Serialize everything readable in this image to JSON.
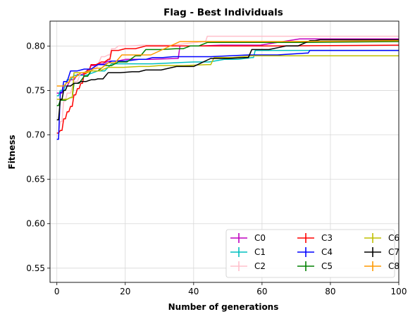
{
  "chart_data": {
    "type": "line",
    "title": "Flag - Best Individuals",
    "xlabel": "Number of generations",
    "ylabel": "Fitness",
    "xlim": [
      -2,
      100
    ],
    "ylim": [
      0.534,
      0.828
    ],
    "xticks": [
      0,
      20,
      40,
      60,
      80,
      100
    ],
    "yticks": [
      0.55,
      0.6,
      0.65,
      0.7,
      0.75,
      0.8
    ],
    "ytick_labels": [
      "0.55",
      "0.60",
      "0.65",
      "0.70",
      "0.75",
      "0.80"
    ],
    "grid": true,
    "legend": {
      "position": "lower-right",
      "columns": 3
    },
    "series": [
      {
        "name": "C0",
        "color": "#bf00bf",
        "points": [
          [
            0,
            0.747
          ],
          [
            1,
            0.747
          ],
          [
            2,
            0.755
          ],
          [
            4,
            0.762
          ],
          [
            6,
            0.768
          ],
          [
            9,
            0.773
          ],
          [
            10,
            0.778
          ],
          [
            12,
            0.78
          ],
          [
            15,
            0.783
          ],
          [
            20,
            0.785
          ],
          [
            35,
            0.786
          ],
          [
            36,
            0.8
          ],
          [
            48,
            0.801
          ],
          [
            71,
            0.808
          ],
          [
            100,
            0.808
          ]
        ]
      },
      {
        "name": "C1",
        "color": "#00bfbf",
        "points": [
          [
            0,
            0.744
          ],
          [
            1,
            0.75
          ],
          [
            3,
            0.762
          ],
          [
            5,
            0.767
          ],
          [
            12,
            0.772
          ],
          [
            16,
            0.78
          ],
          [
            40,
            0.782
          ],
          [
            49,
            0.785
          ],
          [
            57,
            0.787
          ],
          [
            58,
            0.795
          ],
          [
            100,
            0.795
          ]
        ]
      },
      {
        "name": "C2",
        "color": "#ffc0cb",
        "points": [
          [
            0,
            0.702
          ],
          [
            1,
            0.715
          ],
          [
            2,
            0.738
          ],
          [
            3,
            0.747
          ],
          [
            5,
            0.76
          ],
          [
            7,
            0.77
          ],
          [
            10,
            0.774
          ],
          [
            13,
            0.788
          ],
          [
            15,
            0.79
          ],
          [
            16,
            0.797
          ],
          [
            18,
            0.8
          ],
          [
            25,
            0.801
          ],
          [
            43,
            0.805
          ],
          [
            44,
            0.811
          ],
          [
            100,
            0.811
          ]
        ]
      },
      {
        "name": "C3",
        "color": "#ff0000",
        "points": [
          [
            0,
            0.702
          ],
          [
            1,
            0.705
          ],
          [
            2,
            0.718
          ],
          [
            3,
            0.726
          ],
          [
            4,
            0.732
          ],
          [
            5,
            0.745
          ],
          [
            6,
            0.752
          ],
          [
            7,
            0.758
          ],
          [
            8,
            0.769
          ],
          [
            9,
            0.773
          ],
          [
            10,
            0.779
          ],
          [
            13,
            0.782
          ],
          [
            15,
            0.785
          ],
          [
            16,
            0.795
          ],
          [
            20,
            0.797
          ],
          [
            26,
            0.8
          ],
          [
            100,
            0.801
          ]
        ]
      },
      {
        "name": "C4",
        "color": "#0000ff",
        "points": [
          [
            0,
            0.695
          ],
          [
            1,
            0.748
          ],
          [
            2,
            0.76
          ],
          [
            4,
            0.772
          ],
          [
            8,
            0.774
          ],
          [
            12,
            0.779
          ],
          [
            16,
            0.783
          ],
          [
            24,
            0.785
          ],
          [
            28,
            0.787
          ],
          [
            34,
            0.788
          ],
          [
            56,
            0.79
          ],
          [
            73,
            0.792
          ],
          [
            74,
            0.795
          ],
          [
            100,
            0.795
          ]
        ]
      },
      {
        "name": "C5",
        "color": "#008000",
        "points": [
          [
            0,
            0.733
          ],
          [
            1,
            0.739
          ],
          [
            4,
            0.742
          ],
          [
            5,
            0.758
          ],
          [
            8,
            0.766
          ],
          [
            10,
            0.772
          ],
          [
            14,
            0.778
          ],
          [
            18,
            0.782
          ],
          [
            23,
            0.789
          ],
          [
            26,
            0.796
          ],
          [
            35,
            0.797
          ],
          [
            39,
            0.8
          ],
          [
            44,
            0.804
          ],
          [
            100,
            0.805
          ]
        ]
      },
      {
        "name": "C6",
        "color": "#bfbf00",
        "points": [
          [
            0,
            0.74
          ],
          [
            2,
            0.74
          ],
          [
            4,
            0.742
          ],
          [
            5,
            0.77
          ],
          [
            10,
            0.772
          ],
          [
            15,
            0.776
          ],
          [
            24,
            0.777
          ],
          [
            30,
            0.778
          ],
          [
            44,
            0.779
          ],
          [
            46,
            0.787
          ],
          [
            57,
            0.789
          ],
          [
            100,
            0.789
          ]
        ]
      },
      {
        "name": "C7",
        "color": "#000000",
        "points": [
          [
            0,
            0.717
          ],
          [
            1,
            0.74
          ],
          [
            2,
            0.75
          ],
          [
            3,
            0.755
          ],
          [
            5,
            0.758
          ],
          [
            7,
            0.76
          ],
          [
            10,
            0.762
          ],
          [
            12,
            0.763
          ],
          [
            15,
            0.77
          ],
          [
            22,
            0.771
          ],
          [
            26,
            0.773
          ],
          [
            35,
            0.777
          ],
          [
            45,
            0.786
          ],
          [
            55,
            0.787
          ],
          [
            57,
            0.796
          ],
          [
            67,
            0.8
          ],
          [
            74,
            0.806
          ],
          [
            77,
            0.807
          ],
          [
            100,
            0.807
          ]
        ]
      },
      {
        "name": "C8",
        "color": "#ff9900",
        "points": [
          [
            0,
            0.755
          ],
          [
            1,
            0.755
          ],
          [
            3,
            0.759
          ],
          [
            4,
            0.765
          ],
          [
            7,
            0.77
          ],
          [
            11,
            0.775
          ],
          [
            15,
            0.781
          ],
          [
            19,
            0.79
          ],
          [
            36,
            0.805
          ],
          [
            100,
            0.806
          ]
        ]
      }
    ]
  }
}
